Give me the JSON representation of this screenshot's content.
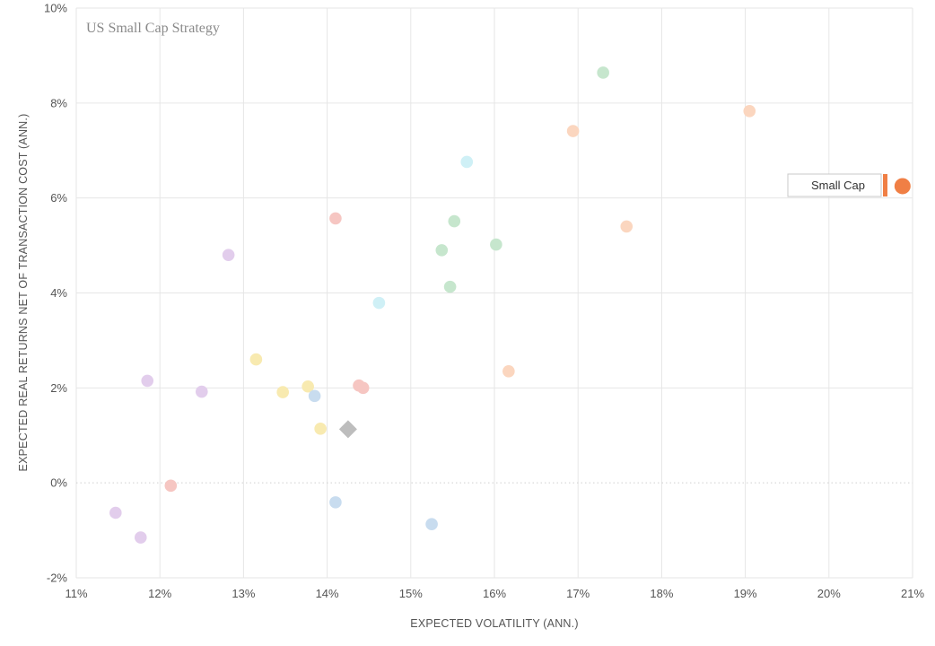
{
  "chart_data": {
    "type": "scatter",
    "title": "US Small Cap Strategy",
    "xlabel": "EXPECTED VOLATILITY (ANN.)",
    "ylabel": "EXPECTED REAL RETURNS NET OF TRANSACTION COST (ANN.)",
    "xlim": [
      11,
      21
    ],
    "ylim": [
      -2,
      10
    ],
    "x_ticks": [
      11,
      12,
      13,
      14,
      15,
      16,
      17,
      18,
      19,
      20,
      21
    ],
    "y_ticks": [
      -2,
      0,
      2,
      4,
      6,
      8,
      10
    ],
    "x_tick_labels": [
      "11%",
      "12%",
      "13%",
      "14%",
      "15%",
      "16%",
      "17%",
      "18%",
      "19%",
      "20%",
      "21%"
    ],
    "y_tick_labels": [
      "-2%",
      "0%",
      "2%",
      "4%",
      "6%",
      "8%",
      "10%"
    ],
    "grid": true,
    "zero_line": "dotted",
    "colors": {
      "purple": "#e2cdec",
      "red": "#f6c6c2",
      "yellow": "#f8eab0",
      "blue": "#c8dcef",
      "cyan": "#cff0f6",
      "green": "#c6e6cd",
      "orange": "#fbd6bf",
      "diamond": "#bdbdbd",
      "highlight": "#f07f45"
    },
    "series": [
      {
        "name": "purple",
        "color_key": "purple",
        "points": [
          [
            12.82,
            4.8
          ],
          [
            11.85,
            2.15
          ],
          [
            12.5,
            1.92
          ],
          [
            11.47,
            -0.63
          ],
          [
            11.77,
            -1.15
          ]
        ]
      },
      {
        "name": "red",
        "color_key": "red",
        "points": [
          [
            14.1,
            5.57
          ],
          [
            14.38,
            2.05
          ],
          [
            14.43,
            2.0
          ],
          [
            12.13,
            -0.06
          ]
        ]
      },
      {
        "name": "yellow",
        "color_key": "yellow",
        "points": [
          [
            13.15,
            2.6
          ],
          [
            13.47,
            1.91
          ],
          [
            13.77,
            2.03
          ],
          [
            13.92,
            1.14
          ]
        ]
      },
      {
        "name": "blue",
        "color_key": "blue",
        "points": [
          [
            13.85,
            1.83
          ],
          [
            14.1,
            -0.41
          ],
          [
            15.25,
            -0.87
          ]
        ]
      },
      {
        "name": "cyan",
        "color_key": "cyan",
        "points": [
          [
            15.67,
            6.76
          ],
          [
            14.62,
            3.79
          ]
        ]
      },
      {
        "name": "green",
        "color_key": "green",
        "points": [
          [
            17.3,
            8.64
          ],
          [
            15.52,
            5.51
          ],
          [
            15.37,
            4.9
          ],
          [
            16.02,
            5.02
          ],
          [
            15.47,
            4.13
          ]
        ]
      },
      {
        "name": "orange",
        "color_key": "orange",
        "points": [
          [
            19.05,
            7.83
          ],
          [
            16.94,
            7.41
          ],
          [
            17.58,
            5.4
          ],
          [
            16.17,
            2.35
          ]
        ]
      }
    ],
    "diamond_point": {
      "x": 14.25,
      "y": 1.13
    },
    "highlight": {
      "label": "Small Cap",
      "x": 20.88,
      "y": 6.25
    }
  }
}
